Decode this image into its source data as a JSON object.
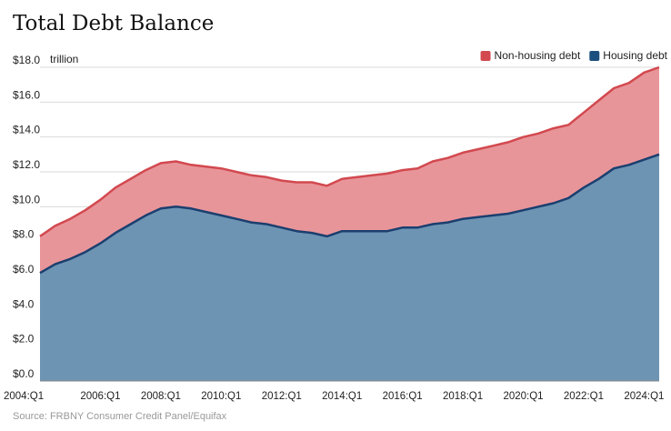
{
  "chart_data": {
    "type": "area",
    "title": "Total Debt Balance",
    "unit_label": "trillion",
    "source": "Source: FRBNY Consumer Credit Panel/Equifax",
    "ylim": [
      0,
      18
    ],
    "yticks": [
      0,
      2,
      4,
      6,
      8,
      10,
      12,
      14,
      16,
      18
    ],
    "ytick_labels": [
      "$0.0",
      "$2.0",
      "$4.0",
      "$6.0",
      "$8.0",
      "$10.0",
      "$12.0",
      "$14.0",
      "$16.0",
      "$18.0"
    ],
    "xtick_labels": [
      "2004:Q1",
      "2006:Q1",
      "2008:Q1",
      "2010:Q1",
      "2012:Q1",
      "2014:Q1",
      "2016:Q1",
      "2018:Q1",
      "2020:Q1",
      "2022:Q1",
      "2024:Q1"
    ],
    "stacked": true,
    "grid": "horizontal",
    "legend_position": "top-right",
    "colors": {
      "housing_fill": "#6d94b3",
      "housing_line": "#1b3f6f",
      "nonhousing_fill": "#e8959a",
      "nonhousing_line": "#d2494f"
    },
    "legend": [
      {
        "label": "Non-housing debt",
        "color": "#d2494f"
      },
      {
        "label": "Housing debt",
        "color": "#1b4f7d"
      }
    ],
    "x_quarters": [
      "2004:Q1",
      "2004:Q3",
      "2005:Q1",
      "2005:Q3",
      "2006:Q1",
      "2006:Q3",
      "2007:Q1",
      "2007:Q3",
      "2008:Q1",
      "2008:Q3",
      "2009:Q1",
      "2009:Q3",
      "2010:Q1",
      "2010:Q3",
      "2011:Q1",
      "2011:Q3",
      "2012:Q1",
      "2012:Q3",
      "2013:Q1",
      "2013:Q3",
      "2014:Q1",
      "2014:Q3",
      "2015:Q1",
      "2015:Q3",
      "2016:Q1",
      "2016:Q3",
      "2017:Q1",
      "2017:Q3",
      "2018:Q1",
      "2018:Q3",
      "2019:Q1",
      "2019:Q3",
      "2020:Q1",
      "2020:Q3",
      "2021:Q1",
      "2021:Q3",
      "2022:Q1",
      "2022:Q3",
      "2023:Q1",
      "2023:Q3",
      "2024:Q1",
      "2024:Q3"
    ],
    "series": [
      {
        "name": "Housing debt",
        "values": [
          6.2,
          6.7,
          7.0,
          7.4,
          7.9,
          8.5,
          9.0,
          9.5,
          9.9,
          10.0,
          9.9,
          9.7,
          9.5,
          9.3,
          9.1,
          9.0,
          8.8,
          8.6,
          8.5,
          8.3,
          8.6,
          8.6,
          8.6,
          8.6,
          8.8,
          8.8,
          9.0,
          9.1,
          9.3,
          9.4,
          9.5,
          9.6,
          9.8,
          10.0,
          10.2,
          10.5,
          11.1,
          11.6,
          12.2,
          12.4,
          12.7,
          13.0
        ]
      },
      {
        "name": "Non-housing debt",
        "values": [
          2.1,
          2.2,
          2.3,
          2.4,
          2.5,
          2.6,
          2.6,
          2.6,
          2.6,
          2.6,
          2.5,
          2.6,
          2.7,
          2.7,
          2.7,
          2.7,
          2.7,
          2.8,
          2.9,
          2.9,
          3.0,
          3.1,
          3.2,
          3.3,
          3.3,
          3.4,
          3.6,
          3.7,
          3.8,
          3.9,
          4.0,
          4.1,
          4.2,
          4.2,
          4.3,
          4.2,
          4.3,
          4.5,
          4.6,
          4.7,
          5.0,
          5.0
        ]
      }
    ]
  }
}
